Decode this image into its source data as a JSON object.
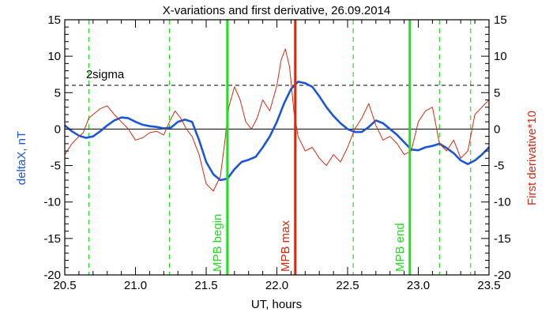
{
  "chart_data": {
    "type": "line",
    "title": "X-variations and first derivative, 26.09.2014",
    "xlabel": "UT, hours",
    "ylabel_left": "deltaX, nT",
    "ylabel_right": "First derivative*10",
    "xlim": [
      20.5,
      23.5
    ],
    "ylim": [
      -20,
      15
    ],
    "x_ticks": [
      "20.5",
      "21.0",
      "21.5",
      "22.0",
      "22.5",
      "23.0",
      "23.5"
    ],
    "y_ticks": [
      "15",
      "10",
      "5",
      "0",
      "-5",
      "-10",
      "-15",
      "-20"
    ],
    "colors": {
      "deltaX": "#1a56d6",
      "derivative": "#d42a10",
      "green": "#22dd22",
      "max": "#d42a10"
    },
    "threshold": {
      "label": "2sigma",
      "value": 6
    },
    "zero_line": 0,
    "dashed_green_lines": [
      20.67,
      21.24,
      22.54,
      23.15,
      23.37
    ],
    "markers": [
      {
        "label": "MPB begin",
        "x": 21.65,
        "color": "green"
      },
      {
        "label": "MPB max",
        "x": 22.13,
        "color": "max"
      },
      {
        "label": "MPB end",
        "x": 22.94,
        "color": "green"
      }
    ],
    "series": [
      {
        "key": "deltaX",
        "x": [
          20.5,
          20.55,
          20.6,
          20.65,
          20.7,
          20.75,
          20.8,
          20.85,
          20.9,
          20.95,
          21.0,
          21.05,
          21.1,
          21.15,
          21.2,
          21.25,
          21.3,
          21.35,
          21.4,
          21.45,
          21.5,
          21.55,
          21.6,
          21.65,
          21.7,
          21.75,
          21.8,
          21.85,
          21.9,
          21.95,
          22.0,
          22.05,
          22.1,
          22.15,
          22.2,
          22.25,
          22.3,
          22.35,
          22.4,
          22.45,
          22.5,
          22.55,
          22.6,
          22.65,
          22.7,
          22.75,
          22.8,
          22.85,
          22.9,
          22.95,
          23.0,
          23.05,
          23.1,
          23.15,
          23.2,
          23.25,
          23.3,
          23.35,
          23.4,
          23.45,
          23.5
        ],
        "y": [
          0.5,
          -0.3,
          -0.9,
          -1.2,
          -1.0,
          -0.3,
          0.5,
          1.2,
          1.6,
          1.5,
          1.0,
          0.6,
          0.4,
          0.3,
          0.1,
          0.2,
          1.0,
          1.3,
          1.0,
          -1.5,
          -4.5,
          -6.2,
          -7.0,
          -6.8,
          -5.5,
          -4.5,
          -4.2,
          -3.8,
          -2.5,
          -1.0,
          1.0,
          3.5,
          5.5,
          6.5,
          6.3,
          5.8,
          4.5,
          3.0,
          1.8,
          0.8,
          0.0,
          -0.4,
          -0.4,
          0.3,
          1.2,
          0.8,
          0.0,
          -0.8,
          -1.8,
          -2.8,
          -2.9,
          -2.5,
          -2.3,
          -2.0,
          -2.6,
          -3.3,
          -4.3,
          -4.8,
          -4.3,
          -3.5,
          -2.5
        ]
      },
      {
        "key": "derivative",
        "x": [
          20.5,
          20.55,
          20.6,
          20.63,
          20.67,
          20.7,
          20.75,
          20.8,
          20.85,
          20.9,
          20.95,
          21.0,
          21.05,
          21.1,
          21.15,
          21.2,
          21.24,
          21.28,
          21.32,
          21.36,
          21.4,
          21.45,
          21.5,
          21.55,
          21.6,
          21.63,
          21.66,
          21.7,
          21.74,
          21.78,
          21.82,
          21.86,
          21.9,
          21.95,
          22.0,
          22.03,
          22.06,
          22.09,
          22.12,
          22.15,
          22.2,
          22.25,
          22.3,
          22.35,
          22.4,
          22.45,
          22.5,
          22.55,
          22.6,
          22.65,
          22.7,
          22.75,
          22.8,
          22.85,
          22.9,
          22.95,
          23.0,
          23.05,
          23.1,
          23.15,
          23.2,
          23.25,
          23.3,
          23.35,
          23.4,
          23.45,
          23.5
        ],
        "y": [
          -3.5,
          -2.0,
          -1.0,
          -0.5,
          1.5,
          2.0,
          2.8,
          3.2,
          2.0,
          1.0,
          0.0,
          -1.5,
          -1.2,
          -0.5,
          -0.3,
          -0.8,
          1.0,
          2.5,
          1.5,
          0.0,
          -1.0,
          -3.5,
          -7.5,
          -8.5,
          -6.5,
          -2.0,
          3.0,
          5.8,
          4.0,
          1.0,
          0.0,
          1.5,
          4.0,
          2.5,
          6.0,
          9.5,
          11.0,
          8.5,
          2.5,
          -1.0,
          -3.0,
          -2.5,
          -4.0,
          -5.0,
          -3.5,
          -4.5,
          -2.5,
          0.0,
          1.5,
          3.5,
          0.5,
          -1.5,
          -1.0,
          -2.0,
          -3.5,
          -3.0,
          1.0,
          2.5,
          3.0,
          -2.0,
          -3.0,
          -1.5,
          -4.0,
          -3.0,
          2.0,
          3.0,
          4.0
        ]
      }
    ]
  }
}
